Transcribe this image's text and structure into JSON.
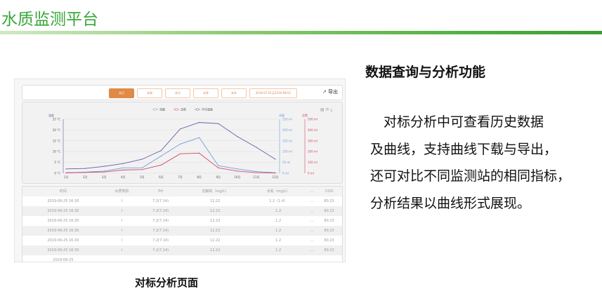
{
  "slide": {
    "title": "水质监测平台",
    "heading": "数据查询与分析功能",
    "paragraph": [
      "　对标分析中可查看历史数据",
      "及曲线，支持曲线下载与导出，",
      "还可对比不同监测站的相同指标，",
      "分析结果以曲线形式展现。"
    ],
    "caption": "对标分析页面"
  },
  "screenshot": {
    "toolbar": {
      "buttons": [
        "本日",
        "本周",
        "本月",
        "本季",
        "本年"
      ],
      "active": 0,
      "date_range": "2019-07-01至2019-08-01",
      "export_label": "导出"
    },
    "table": {
      "headers": [
        "时间",
        "水质类别",
        "PH",
        "溶解氧（mg/L）",
        "水氮（mg/L）",
        "...",
        "COD"
      ],
      "rows": [
        [
          "2019-09-25 16:30",
          "I",
          "7.2(7.14)",
          "12.22",
          "1.2（1.4）",
          "...",
          "80.23"
        ],
        [
          "2019-09-25 16:30",
          "I",
          "7.2(7.14)",
          "12.22",
          "1.2",
          "...",
          "80.23"
        ],
        [
          "2019-09-25 16:30",
          "I",
          "7.2(7.14)",
          "12.22",
          "1.2",
          "...",
          "80.23"
        ],
        [
          "2019-09-25 16:30",
          "I",
          "7.2(7.14)",
          "12.22",
          "1.2",
          "...",
          "80.23"
        ],
        [
          "2019-09-25 16:30",
          "I",
          "7.2(7.14)",
          "12.22",
          "1.2",
          "...",
          "80.23"
        ],
        [
          "2019-09-25 16:30",
          "I",
          "7.2(7.14)",
          "12.22",
          "1.2",
          "...",
          "80.23"
        ],
        [
          "2019-09-25",
          "",
          "",
          "",
          "",
          "",
          ""
        ]
      ]
    }
  },
  "chart_data": {
    "type": "line",
    "categories": [
      "1月",
      "2月",
      "3月",
      "4月",
      "5月",
      "6月",
      "7月",
      "8月",
      "9月",
      "10月",
      "11月",
      "12月"
    ],
    "legend": [
      "流量",
      "总氮",
      "平均温度"
    ],
    "legend_position": "top",
    "axes": {
      "left": {
        "label": "温度",
        "ticks": [
          "0 °C",
          "5 °C",
          "10 °C",
          "15 °C",
          "20 °C",
          "25 °C"
        ],
        "range": [
          0,
          25
        ]
      },
      "right1": {
        "label": "流量",
        "ticks": [
          "0 ml",
          "50 ml",
          "100 ml",
          "150 ml",
          "200 ml",
          "250 ml"
        ],
        "range": [
          0,
          250
        ]
      },
      "right2": {
        "label": "总氮",
        "ticks": [
          "0 ml",
          "100 ml",
          "200 ml",
          "300 ml",
          "400 ml",
          "500 ml"
        ],
        "range": [
          0,
          500
        ]
      }
    },
    "series": [
      {
        "name": "平均温度",
        "axis": "left",
        "color": "#6a5aa8",
        "values": [
          2,
          2.2,
          3.2,
          4.5,
          6.5,
          10.5,
          20.5,
          23.5,
          23,
          17,
          12,
          6.5
        ]
      },
      {
        "name": "流量",
        "axis": "right1",
        "color": "#6f9fe0",
        "values": [
          2,
          5,
          10,
          25,
          25,
          80,
          135,
          165,
          35,
          20,
          8,
          2
        ]
      },
      {
        "name": "总氮",
        "axis": "right2",
        "color": "#d04a6a",
        "values": [
          4,
          8,
          12,
          30,
          34,
          76,
          180,
          186,
          50,
          20,
          6,
          2
        ]
      }
    ],
    "grid": true
  }
}
